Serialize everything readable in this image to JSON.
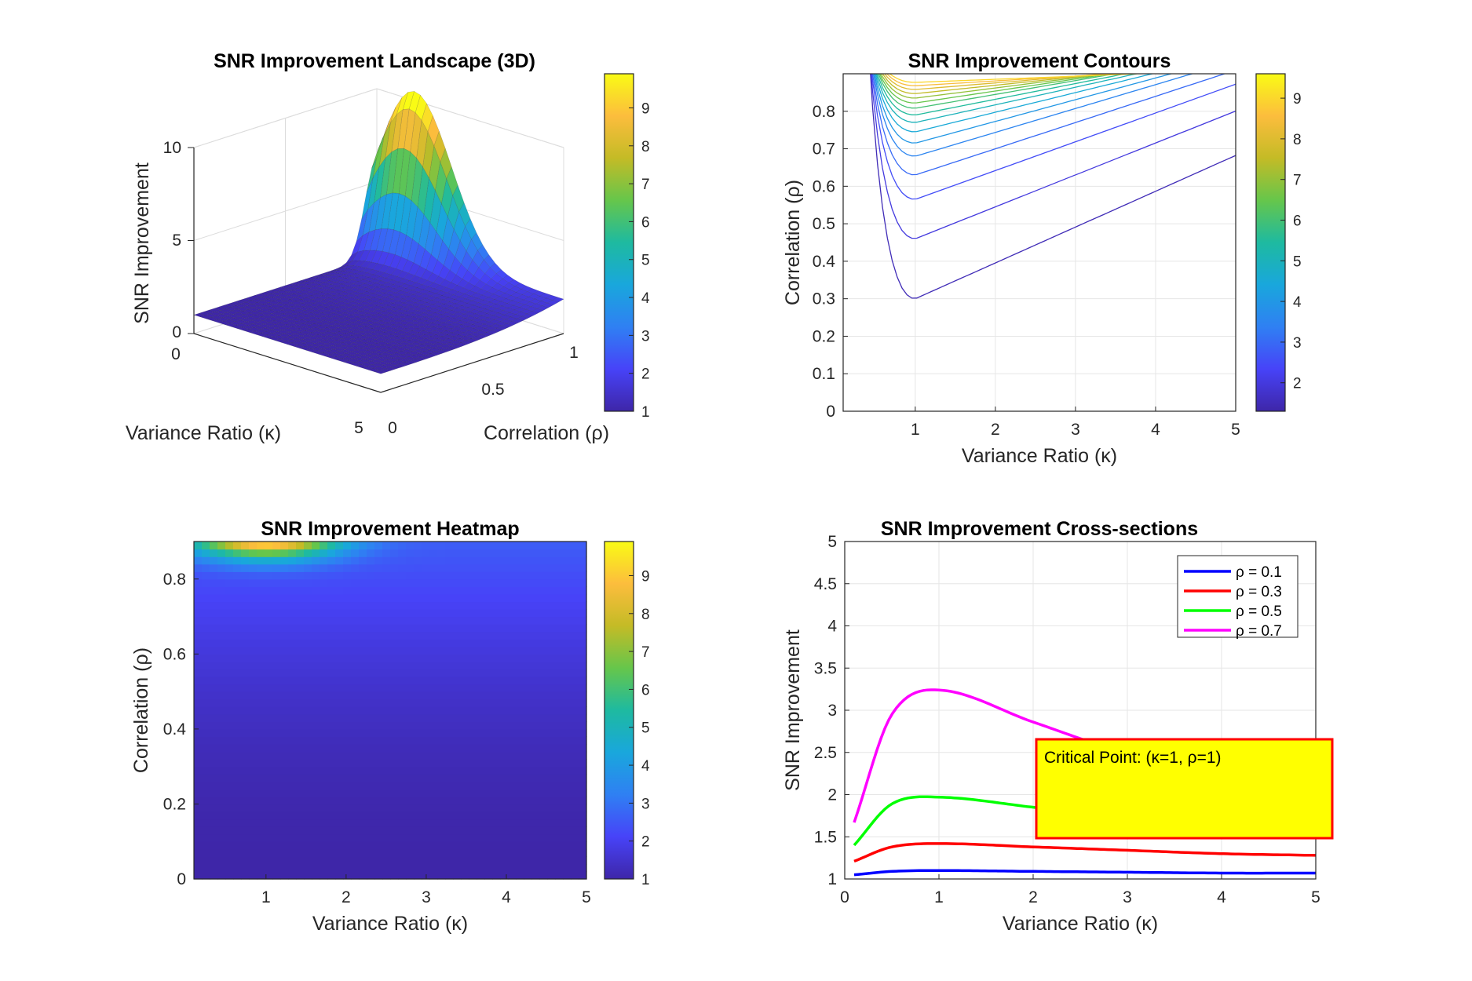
{
  "figure": {
    "background": "#ffffff",
    "colormap": [
      "#3e26a8",
      "#4743f8",
      "#2f80f3",
      "#19a7dc",
      "#1ebaa0",
      "#66c64b",
      "#c4bb26",
      "#fcbd3d",
      "#f9fb15"
    ]
  },
  "chart_data": [
    {
      "id": "surface3d",
      "type": "surface",
      "title": "SNR Improvement Landscape (3D)",
      "xlabel": "Variance Ratio (κ)",
      "ylabel": "Correlation (ρ)",
      "zlabel": "SNR Improvement",
      "x_ticks": [
        "0",
        "5"
      ],
      "y_ticks": [
        "0",
        "0.5",
        "1"
      ],
      "z_ticks": [
        "0",
        "5",
        "10"
      ],
      "xlim": [
        0,
        5
      ],
      "ylim": [
        0,
        1
      ],
      "zlim": [
        0,
        10
      ],
      "colorbar_ticks": [
        "1",
        "2",
        "3",
        "4",
        "5",
        "6",
        "7",
        "8",
        "9"
      ],
      "colorbar_range": [
        1,
        9.9
      ],
      "grid": true
    },
    {
      "id": "contours",
      "type": "contour",
      "title": "SNR Improvement Contours",
      "xlabel": "Variance Ratio (κ)",
      "ylabel": "Correlation (ρ)",
      "x_ticks": [
        "1",
        "2",
        "3",
        "4",
        "5"
      ],
      "y_ticks": [
        "0",
        "0.1",
        "0.2",
        "0.3",
        "0.4",
        "0.5",
        "0.6",
        "0.7",
        "0.8"
      ],
      "xlim": [
        0.1,
        5
      ],
      "ylim": [
        0,
        0.9
      ],
      "levels": [
        1.5,
        2,
        2.5,
        3,
        3.5,
        4,
        4.5,
        5,
        5.5,
        6,
        6.5,
        7,
        7.5,
        8,
        8.5,
        9
      ],
      "colorbar_ticks": [
        "2",
        "3",
        "4",
        "5",
        "6",
        "7",
        "8",
        "9"
      ],
      "colorbar_range": [
        1.3,
        9.6
      ],
      "grid": true
    },
    {
      "id": "heatmap",
      "type": "heatmap",
      "title": "SNR Improvement Heatmap",
      "xlabel": "Variance Ratio (κ)",
      "ylabel": "Correlation (ρ)",
      "x_ticks": [
        "1",
        "2",
        "3",
        "4",
        "5"
      ],
      "y_ticks": [
        "0",
        "0.2",
        "0.4",
        "0.6",
        "0.8"
      ],
      "xlim": [
        0.1,
        5
      ],
      "ylim": [
        0,
        0.9
      ],
      "colorbar_ticks": [
        "1",
        "2",
        "3",
        "4",
        "5",
        "6",
        "7",
        "8",
        "9"
      ],
      "colorbar_range": [
        1,
        9.9
      ],
      "grid": false
    },
    {
      "id": "crosssections",
      "type": "line",
      "title": "SNR Improvement Cross-sections",
      "xlabel": "Variance Ratio (κ)",
      "ylabel": "SNR Improvement",
      "x_ticks": [
        "0",
        "1",
        "2",
        "3",
        "4",
        "5"
      ],
      "y_ticks": [
        "1",
        "1.5",
        "2",
        "2.5",
        "3",
        "3.5",
        "4",
        "4.5",
        "5"
      ],
      "xlim": [
        0,
        5
      ],
      "ylim": [
        1,
        5
      ],
      "grid": true,
      "legend_position": "top-right",
      "series": [
        {
          "name": "ρ = 0.1",
          "color": "#0000ff",
          "rho": 0.1,
          "x": [
            0.1,
            0.5,
            1,
            2,
            3,
            4,
            5
          ],
          "y": [
            1.05,
            1.09,
            1.1,
            1.09,
            1.08,
            1.07,
            1.07
          ]
        },
        {
          "name": "ρ = 0.3",
          "color": "#ff0000",
          "rho": 0.3,
          "x": [
            0.1,
            0.5,
            1,
            2,
            3,
            4,
            5
          ],
          "y": [
            1.21,
            1.38,
            1.42,
            1.38,
            1.34,
            1.3,
            1.28
          ]
        },
        {
          "name": "ρ = 0.5",
          "color": "#00ff00",
          "rho": 0.5,
          "x": [
            0.1,
            0.5,
            1,
            2,
            3,
            4,
            5
          ],
          "y": [
            1.4,
            1.89,
            1.97,
            1.85,
            1.72,
            1.62,
            1.55
          ]
        },
        {
          "name": "ρ = 0.7",
          "color": "#ff00ff",
          "rho": 0.7,
          "x": [
            0.1,
            0.5,
            1,
            2,
            3,
            4,
            5
          ],
          "y": [
            1.67,
            2.95,
            3.24,
            2.86,
            2.48,
            2.2,
            2.01
          ]
        }
      ],
      "annotation": {
        "text": "Critical Point: (κ=1, ρ=1)",
        "background": "#ffff00",
        "border": "#ff0000"
      }
    }
  ]
}
